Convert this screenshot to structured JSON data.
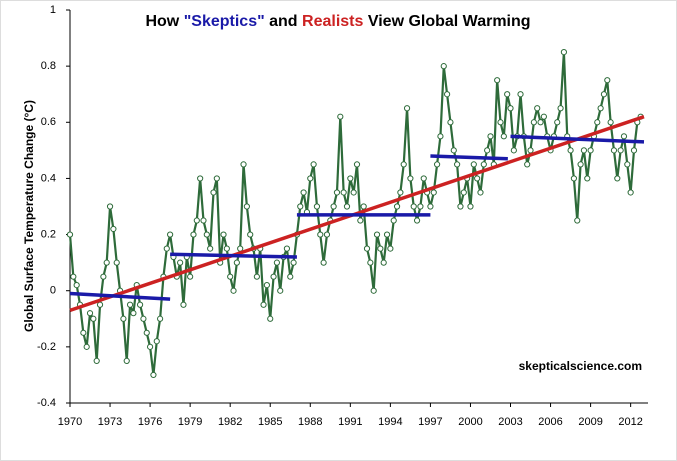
{
  "chart_data": {
    "type": "line",
    "title_parts": [
      {
        "text": "How ",
        "color": "#000000"
      },
      {
        "text": "\"Skeptics\"",
        "color": "#1a1aa8"
      },
      {
        "text": " and ",
        "color": "#000000"
      },
      {
        "text": "Realists",
        "color": "#cc2222"
      },
      {
        "text": " View Global Warming",
        "color": "#000000"
      }
    ],
    "y_label": "Global Surface Temperature Change (°C)",
    "source": "skepticalscience.com",
    "xlim": [
      1970,
      2013.3
    ],
    "xticks": [
      1970,
      1973,
      1976,
      1979,
      1982,
      1985,
      1988,
      1991,
      1994,
      1997,
      2000,
      2003,
      2006,
      2009,
      2012
    ],
    "ylim": [
      -0.4,
      1
    ],
    "yticks": [
      -0.4,
      -0.2,
      0,
      0.2,
      0.4,
      0.6,
      0.8,
      1
    ],
    "series": [
      {
        "color": "#2e6b3a",
        "marker_fill": "#ffffff",
        "x": [
          1970,
          1970.25,
          1970.5,
          1970.75,
          1971,
          1971.25,
          1971.5,
          1971.75,
          1972,
          1972.25,
          1972.5,
          1972.75,
          1973,
          1973.25,
          1973.5,
          1973.75,
          1974,
          1974.25,
          1974.5,
          1974.75,
          1975,
          1975.25,
          1975.5,
          1975.75,
          1976,
          1976.25,
          1976.5,
          1976.75,
          1977,
          1977.25,
          1977.5,
          1977.75,
          1978,
          1978.25,
          1978.5,
          1978.75,
          1979,
          1979.25,
          1979.5,
          1979.75,
          1980,
          1980.25,
          1980.5,
          1980.75,
          1981,
          1981.25,
          1981.5,
          1981.75,
          1982,
          1982.25,
          1982.5,
          1982.75,
          1983,
          1983.25,
          1983.5,
          1983.75,
          1984,
          1984.25,
          1984.5,
          1984.75,
          1985,
          1985.25,
          1985.5,
          1985.75,
          1986,
          1986.25,
          1986.5,
          1986.75,
          1987,
          1987.25,
          1987.5,
          1987.75,
          1988,
          1988.25,
          1988.5,
          1988.75,
          1989,
          1989.25,
          1989.5,
          1989.75,
          1990,
          1990.25,
          1990.5,
          1990.75,
          1991,
          1991.25,
          1991.5,
          1991.75,
          1992,
          1992.25,
          1992.5,
          1992.75,
          1993,
          1993.25,
          1993.5,
          1993.75,
          1994,
          1994.25,
          1994.5,
          1994.75,
          1995,
          1995.25,
          1995.5,
          1995.75,
          1996,
          1996.25,
          1996.5,
          1996.75,
          1997,
          1997.25,
          1997.5,
          1997.75,
          1998,
          1998.25,
          1998.5,
          1998.75,
          1999,
          1999.25,
          1999.5,
          1999.75,
          2000,
          2000.25,
          2000.5,
          2000.75,
          2001,
          2001.25,
          2001.5,
          2001.75,
          2002,
          2002.25,
          2002.5,
          2002.75,
          2003,
          2003.25,
          2003.5,
          2003.75,
          2004,
          2004.25,
          2004.5,
          2004.75,
          2005,
          2005.25,
          2005.5,
          2005.75,
          2006,
          2006.25,
          2006.5,
          2006.75,
          2007,
          2007.25,
          2007.5,
          2007.75,
          2008,
          2008.25,
          2008.5,
          2008.75,
          2009,
          2009.25,
          2009.5,
          2009.75,
          2010,
          2010.25,
          2010.5,
          2010.75,
          2011,
          2011.25,
          2011.5,
          2011.75,
          2012,
          2012.25,
          2012.5,
          2012.75
        ],
        "values": [
          0.2,
          0.05,
          0.02,
          -0.05,
          -0.15,
          -0.2,
          -0.08,
          -0.1,
          -0.25,
          -0.05,
          0.05,
          0.1,
          0.3,
          0.22,
          0.1,
          0.0,
          -0.1,
          -0.25,
          -0.05,
          -0.08,
          0.02,
          -0.05,
          -0.1,
          -0.15,
          -0.2,
          -0.3,
          -0.18,
          -0.1,
          0.05,
          0.15,
          0.2,
          0.12,
          0.05,
          0.1,
          -0.05,
          0.12,
          0.05,
          0.2,
          0.25,
          0.4,
          0.25,
          0.2,
          0.15,
          0.35,
          0.4,
          0.1,
          0.2,
          0.15,
          0.05,
          0.0,
          0.1,
          0.15,
          0.45,
          0.3,
          0.2,
          0.15,
          0.05,
          0.15,
          -0.05,
          0.02,
          -0.1,
          0.05,
          0.1,
          0.0,
          0.12,
          0.15,
          0.05,
          0.1,
          0.2,
          0.3,
          0.35,
          0.28,
          0.4,
          0.45,
          0.3,
          0.2,
          0.1,
          0.2,
          0.25,
          0.3,
          0.35,
          0.62,
          0.35,
          0.3,
          0.4,
          0.35,
          0.45,
          0.25,
          0.3,
          0.15,
          0.1,
          0.0,
          0.2,
          0.15,
          0.1,
          0.2,
          0.15,
          0.25,
          0.3,
          0.35,
          0.45,
          0.65,
          0.4,
          0.3,
          0.25,
          0.3,
          0.4,
          0.35,
          0.3,
          0.35,
          0.45,
          0.55,
          0.8,
          0.7,
          0.6,
          0.5,
          0.45,
          0.3,
          0.35,
          0.4,
          0.3,
          0.45,
          0.4,
          0.35,
          0.45,
          0.5,
          0.55,
          0.45,
          0.75,
          0.6,
          0.55,
          0.7,
          0.65,
          0.5,
          0.55,
          0.7,
          0.55,
          0.45,
          0.5,
          0.6,
          0.65,
          0.6,
          0.62,
          0.55,
          0.5,
          0.55,
          0.6,
          0.65,
          0.85,
          0.55,
          0.5,
          0.4,
          0.25,
          0.45,
          0.5,
          0.4,
          0.5,
          0.55,
          0.6,
          0.65,
          0.7,
          0.75,
          0.6,
          0.5,
          0.4,
          0.5,
          0.55,
          0.45,
          0.35,
          0.5,
          0.6,
          0.62
        ]
      },
      {
        "color": "#cc2222",
        "x": [
          1970,
          2013
        ],
        "values": [
          -0.07,
          0.62
        ]
      },
      {
        "color": "#1a1aa8",
        "x": [
          1970,
          1977.5
        ],
        "values": [
          -0.01,
          -0.03
        ]
      },
      {
        "color": "#1a1aa8",
        "x": [
          1977.5,
          1987
        ],
        "values": [
          0.13,
          0.12
        ]
      },
      {
        "color": "#1a1aa8",
        "x": [
          1987,
          1997
        ],
        "values": [
          0.27,
          0.27
        ]
      },
      {
        "color": "#1a1aa8",
        "x": [
          1997,
          2002.8
        ],
        "values": [
          0.48,
          0.47
        ]
      },
      {
        "color": "#1a1aa8",
        "x": [
          2003,
          2013
        ],
        "values": [
          0.55,
          0.53
        ]
      }
    ]
  }
}
